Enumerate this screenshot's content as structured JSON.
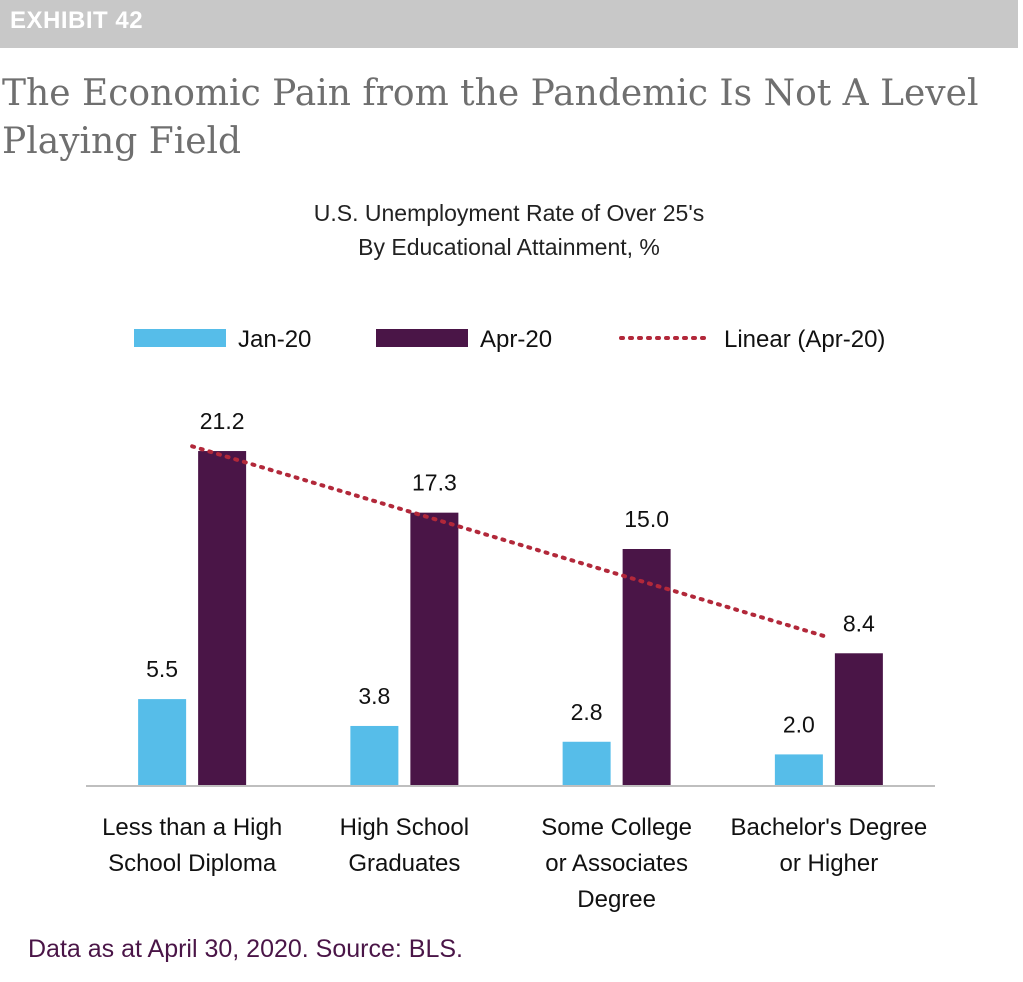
{
  "exhibit_label": "EXHIBIT 42",
  "page_title": "The Economic Pain from the Pandemic Is Not A Level Playing Field",
  "source_note": "Data as at April 30, 2020. Source: BLS.",
  "chart_data": {
    "type": "bar",
    "title_lines": [
      "U.S. Unemployment Rate of Over 25's",
      "By Educational Attainment, %"
    ],
    "categories": [
      [
        "Less than a High",
        "School Diploma"
      ],
      [
        "High School",
        "Graduates"
      ],
      [
        "Some College",
        "or Associates",
        "Degree"
      ],
      [
        "Bachelor's Degree",
        "or Higher"
      ]
    ],
    "series": [
      {
        "name": "Jan-20",
        "color": "#56bde9",
        "values": [
          5.5,
          3.8,
          2.8,
          2.0
        ]
      },
      {
        "name": "Apr-20",
        "color": "#4a1547",
        "values": [
          21.2,
          17.3,
          15.0,
          8.4
        ]
      }
    ],
    "data_labels": {
      "Jan-20": [
        "5.5",
        "3.8",
        "2.8",
        "2.0"
      ],
      "Apr-20": [
        "21.2",
        "17.3",
        "15.0",
        "8.4"
      ]
    },
    "trendline": {
      "name": "Linear (Apr-20)",
      "of_series": "Apr-20",
      "color": "#b2283a",
      "style": "dotted",
      "start_value": 21.5,
      "end_value": 9.4
    },
    "legend_position": "top",
    "ylim": [
      0,
      24
    ],
    "grid": false,
    "y_axis_visible": false
  }
}
